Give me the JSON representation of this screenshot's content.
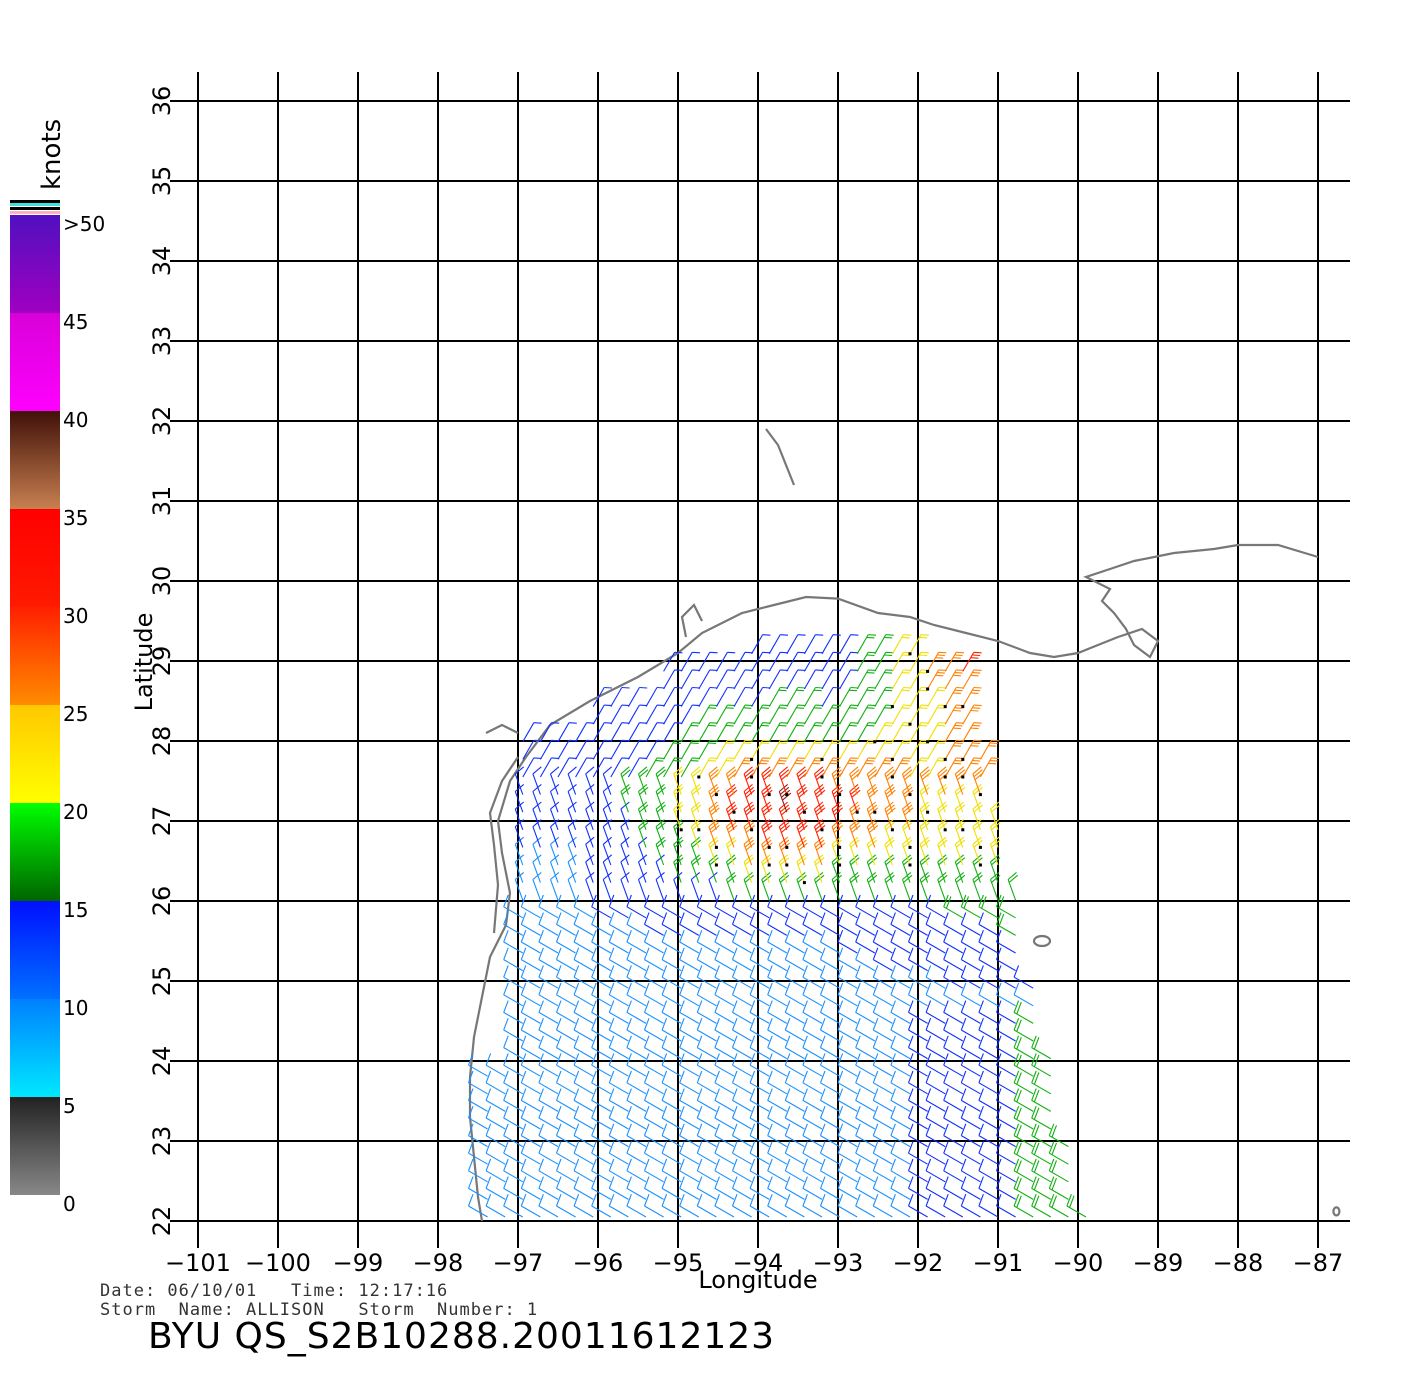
{
  "map": {
    "lon_range": [
      -101,
      -87
    ],
    "lat_range": [
      22,
      36
    ],
    "lon_ticks": [
      -101,
      -100,
      -99,
      -98,
      -97,
      -96,
      -95,
      -94,
      -93,
      -92,
      -91,
      -90,
      -89,
      -88,
      -87
    ],
    "lat_ticks": [
      22,
      23,
      24,
      25,
      26,
      27,
      28,
      29,
      30,
      31,
      32,
      33,
      34,
      35,
      36
    ],
    "xlabel": "Longitude",
    "ylabel": "Latitude",
    "grid": true,
    "coast_color": "#777777",
    "wind_barbs": "wind vectors over the Gulf of Mexico, colored by speed"
  },
  "legend": {
    "unit": "knots",
    "labels": [
      ">50",
      "45",
      "40",
      "35",
      "30",
      "25",
      "20",
      "15",
      "10",
      "5",
      "0"
    ],
    "bands": [
      {
        "from": 0,
        "to": 5,
        "colors": [
          "#888888",
          "#222222"
        ]
      },
      {
        "from": 5,
        "to": 10,
        "colors": [
          "#00e8ff",
          "#0080ff"
        ]
      },
      {
        "from": 10,
        "to": 15,
        "colors": [
          "#0070ff",
          "#0010ff"
        ]
      },
      {
        "from": 15,
        "to": 20,
        "colors": [
          "#006400",
          "#00ff00"
        ]
      },
      {
        "from": 20,
        "to": 25,
        "colors": [
          "#ffff00",
          "#ffc800"
        ]
      },
      {
        "from": 25,
        "to": 30,
        "colors": [
          "#ff8c00",
          "#ff2000"
        ]
      },
      {
        "from": 30,
        "to": 35,
        "colors": [
          "#ff1a00",
          "#ff0000"
        ]
      },
      {
        "from": 35,
        "to": 40,
        "colors": [
          "#c88050",
          "#401008"
        ]
      },
      {
        "from": 40,
        "to": 45,
        "colors": [
          "#ff00ff",
          "#d800d8"
        ]
      },
      {
        "from": 45,
        "to": 50,
        "colors": [
          "#a000c0",
          "#5010c0"
        ]
      }
    ]
  },
  "footer": {
    "date_line": "Date: 06/10/01   Time: 12:17:16",
    "storm_line": "Storm  Name: ALLISON   Storm  Number: 1",
    "product_id": "BYU  QS_S2B10288.20011612123"
  }
}
